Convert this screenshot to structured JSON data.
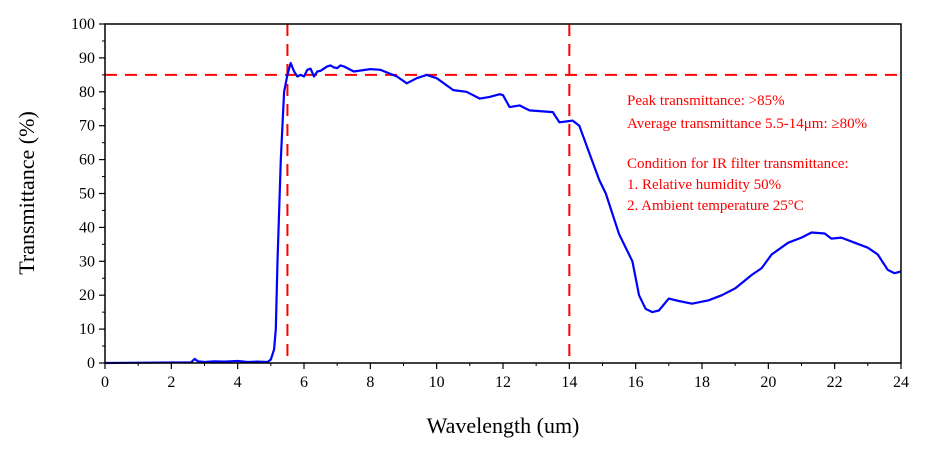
{
  "chart_data": {
    "type": "line",
    "title": "",
    "xlabel": "Wavelength (um)",
    "ylabel": "Transmittance (%)",
    "xlim": [
      0,
      24
    ],
    "ylim": [
      0,
      100
    ],
    "xticks": [
      0,
      2,
      4,
      6,
      8,
      10,
      12,
      14,
      16,
      18,
      20,
      22,
      24
    ],
    "yticks": [
      0,
      10,
      20,
      30,
      40,
      50,
      60,
      70,
      80,
      90,
      100
    ],
    "grid": false,
    "reference_lines": {
      "horizontal": [
        85
      ],
      "vertical": [
        5.5,
        14
      ]
    },
    "annotations": [
      "Peak transmittance: >85%",
      "Average transmittance 5.5-14μm: ≥80%",
      "Condition for IR filter transmittance:",
      "1. Relative humidity 50%",
      "2. Ambient temperature 25°C"
    ],
    "colors": {
      "series": "#0000ff",
      "reference": "#ff0000",
      "annotation": "#ff0000"
    },
    "series": [
      {
        "name": "Transmittance",
        "x": [
          2.6,
          2.7,
          2.8,
          3.0,
          3.3,
          3.6,
          4.0,
          4.3,
          4.6,
          4.9,
          5.0,
          5.1,
          5.15,
          5.2,
          5.3,
          5.4,
          5.5,
          5.6,
          5.7,
          5.8,
          5.9,
          6.0,
          6.1,
          6.2,
          6.3,
          6.4,
          6.5,
          6.7,
          6.8,
          6.9,
          7.0,
          7.1,
          7.2,
          7.5,
          8.0,
          8.3,
          8.8,
          9.1,
          9.4,
          9.7,
          10.0,
          10.5,
          10.9,
          11.3,
          11.6,
          11.9,
          12.0,
          12.2,
          12.5,
          12.7,
          12.8,
          13.5,
          13.7,
          14.1,
          14.3,
          14.6,
          14.9,
          15.1,
          15.5,
          15.9,
          16.1,
          16.3,
          16.5,
          16.7,
          17.0,
          17.3,
          17.7,
          18.2,
          18.6,
          19.0,
          19.5,
          19.8,
          20.1,
          20.6,
          21.0,
          21.3,
          21.7,
          21.9,
          22.2,
          22.6,
          23.0,
          23.3,
          23.6,
          23.8,
          24.0
        ],
        "y": [
          0.2,
          1.2,
          0.5,
          0.3,
          0.5,
          0.4,
          0.6,
          0.3,
          0.4,
          0.3,
          1,
          4,
          10,
          30,
          60,
          80,
          85,
          88.5,
          86,
          84.5,
          85,
          84.5,
          86.5,
          86.8,
          84.5,
          86,
          86.2,
          87.5,
          87.8,
          87.2,
          87,
          87.8,
          87.5,
          86,
          86.7,
          86.5,
          84.5,
          82.5,
          84,
          85,
          84,
          80.5,
          80,
          78,
          78.5,
          79.3,
          79,
          75.5,
          76,
          75,
          74.5,
          74,
          71,
          71.5,
          70,
          62,
          54,
          50,
          38,
          30,
          20,
          16,
          15,
          15.5,
          19,
          18.3,
          17.5,
          18.5,
          20,
          22,
          26,
          28,
          32,
          35.5,
          37,
          38.5,
          38.2,
          36.7,
          37,
          35.5,
          34,
          32,
          27.5,
          26.5,
          27
        ]
      }
    ]
  }
}
